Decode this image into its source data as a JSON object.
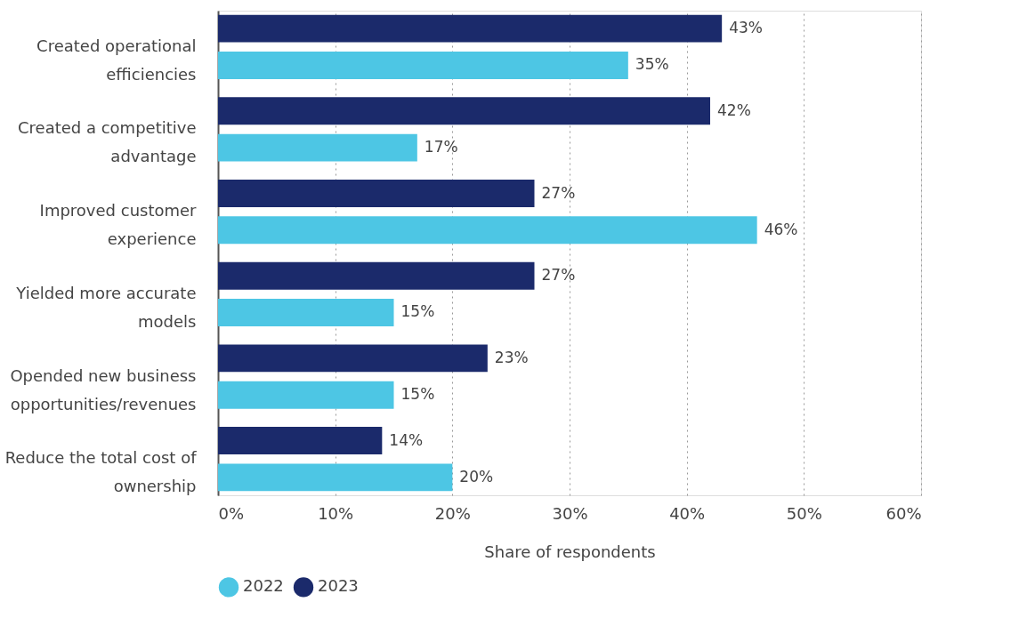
{
  "chart_data": {
    "type": "bar",
    "orientation": "horizontal",
    "xlabel": "Share of respondents",
    "categories": [
      "Created operational efficiencies",
      "Created a competitive advantage",
      "Improved customer experience",
      "Yielded more accurate models",
      "Opended new business opportunities/revenues",
      "Reduce the total cost of ownership"
    ],
    "series": [
      {
        "name": "2022",
        "color": "#4dc6e4",
        "values": [
          35,
          17,
          46,
          15,
          15,
          20
        ],
        "value_labels": [
          "35%",
          "17%",
          "46%",
          "15%",
          "15%",
          "20%"
        ]
      },
      {
        "name": "2023",
        "color": "#1b2a6b",
        "values": [
          43,
          42,
          27,
          27,
          23,
          14
        ],
        "value_labels": [
          "43%",
          "42%",
          "27%",
          "27%",
          "23%",
          "14%"
        ]
      }
    ],
    "xlim": [
      0,
      60
    ],
    "xticks": [
      {
        "value": 0,
        "label": "0%"
      },
      {
        "value": 10,
        "label": "10%"
      },
      {
        "value": 20,
        "label": "20%"
      },
      {
        "value": 30,
        "label": "30%"
      },
      {
        "value": 40,
        "label": "40%"
      },
      {
        "value": 50,
        "label": "50%"
      },
      {
        "value": 60,
        "label": "60%"
      }
    ],
    "grid": "x",
    "legend": "bottom"
  }
}
